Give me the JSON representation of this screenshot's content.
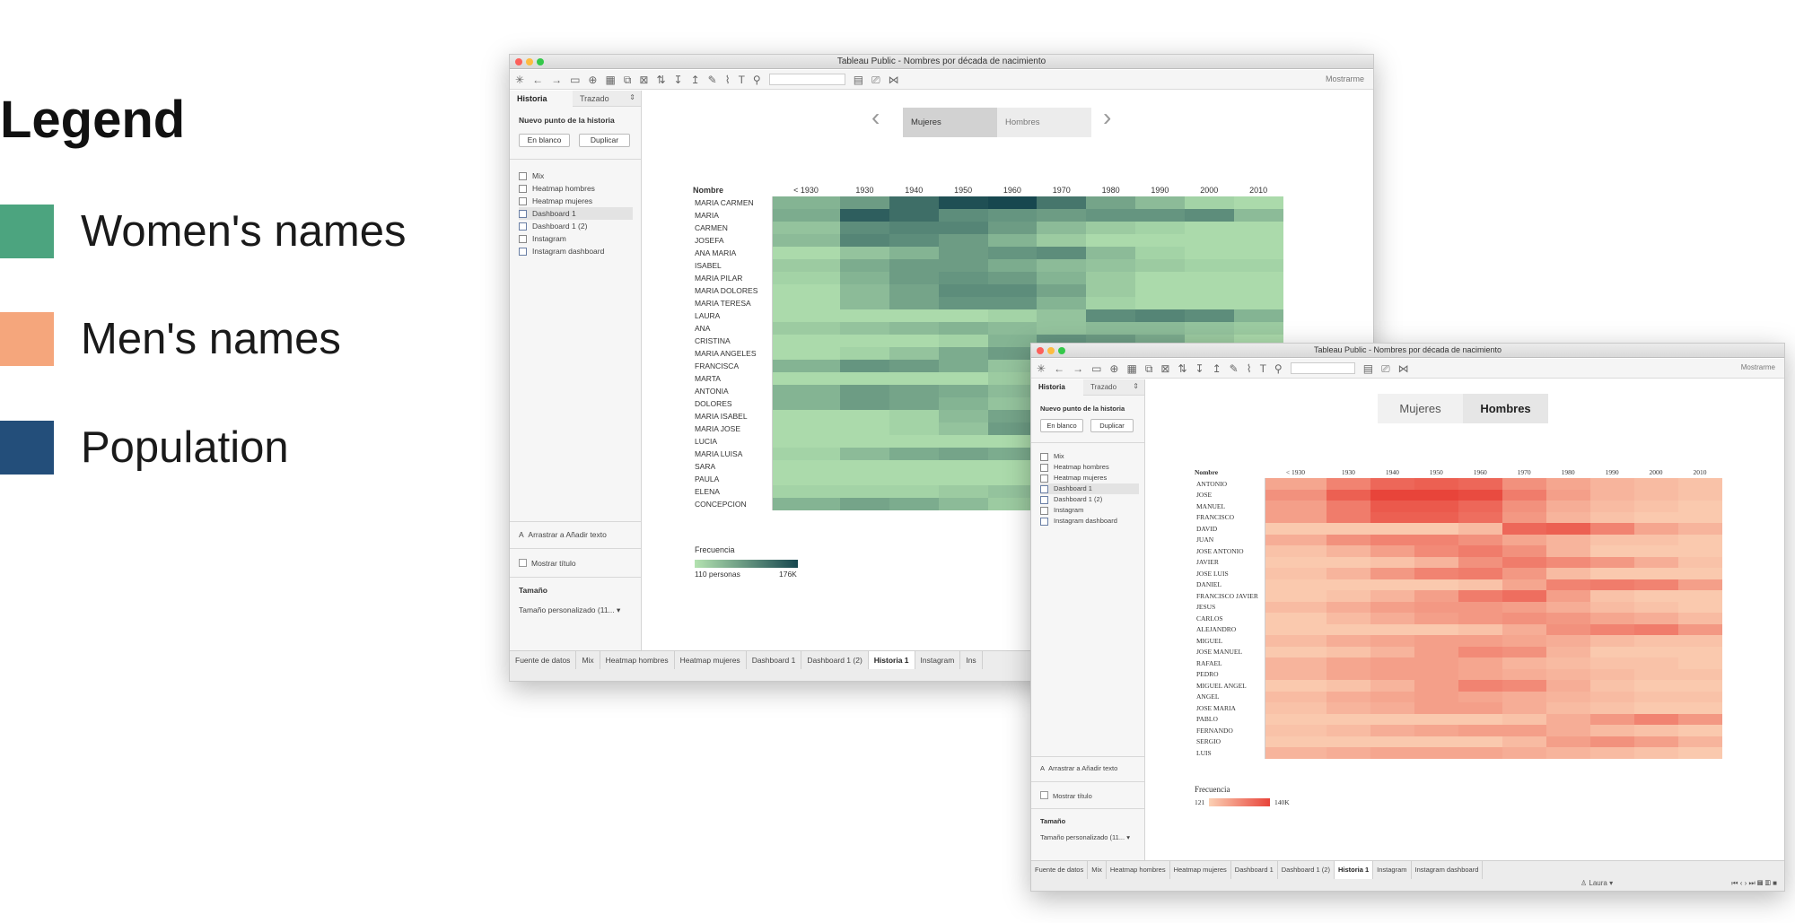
{
  "legend": {
    "title": "Legend",
    "items": [
      {
        "label": "Women's names",
        "color": "#4ca47f"
      },
      {
        "label": "Men's names",
        "color": "#f5a67c"
      },
      {
        "label": "Population",
        "color": "#234e7a"
      }
    ]
  },
  "window_women": {
    "title": "Tableau Public - Nombres por década de nacimiento",
    "show_me": "Mostrarme",
    "sidebar": {
      "tab_history": "Historia",
      "tab_layout": "Trazado",
      "new_point_heading": "Nuevo punto de la historia",
      "blank_button": "En blanco",
      "duplicate_button": "Duplicar",
      "sheets": [
        "Mix",
        "Heatmap hombres",
        "Heatmap mujeres",
        "Dashboard 1",
        "Dashboard 1 (2)",
        "Instagram",
        "Instagram dashboard"
      ],
      "drag_text": "Arrastrar a Añadir texto",
      "show_title": "Mostrar título",
      "size_heading": "Tamaño",
      "size_value": "Tamaño personalizado (11..."
    },
    "nav": {
      "women": "Mujeres",
      "men": "Hombres"
    },
    "heatmap": {
      "name_header": "Nombre",
      "decades": [
        "< 1930",
        "1930",
        "1940",
        "1950",
        "1960",
        "1970",
        "1980",
        "1990",
        "2000",
        "2010"
      ],
      "names": [
        "MARIA CARMEN",
        "MARIA",
        "CARMEN",
        "JOSEFA",
        "ANA MARIA",
        "ISABEL",
        "MARIA PILAR",
        "MARIA DOLORES",
        "MARIA TERESA",
        "LAURA",
        "ANA",
        "CRISTINA",
        "MARIA ANGELES",
        "FRANCISCA",
        "MARTA",
        "ANTONIA",
        "DOLORES",
        "MARIA ISABEL",
        "MARIA JOSE",
        "LUCIA",
        "MARIA LUISA",
        "SARA",
        "PAULA",
        "ELENA",
        "CONCEPCION"
      ],
      "intensity": [
        [
          0.3,
          0.45,
          0.75,
          0.95,
          1.0,
          0.7,
          0.4,
          0.25,
          0.1,
          0.05
        ],
        [
          0.35,
          0.85,
          0.75,
          0.55,
          0.5,
          0.45,
          0.5,
          0.5,
          0.55,
          0.25
        ],
        [
          0.2,
          0.55,
          0.6,
          0.6,
          0.45,
          0.25,
          0.15,
          0.1,
          0.05,
          0.05
        ],
        [
          0.25,
          0.6,
          0.55,
          0.45,
          0.3,
          0.15,
          0.05,
          0.05,
          0.05,
          0.05
        ],
        [
          0.05,
          0.2,
          0.3,
          0.45,
          0.5,
          0.55,
          0.25,
          0.1,
          0.05,
          0.05
        ],
        [
          0.15,
          0.35,
          0.45,
          0.45,
          0.35,
          0.25,
          0.2,
          0.15,
          0.1,
          0.1
        ],
        [
          0.1,
          0.3,
          0.45,
          0.5,
          0.45,
          0.3,
          0.15,
          0.05,
          0.05,
          0.05
        ],
        [
          0.05,
          0.25,
          0.4,
          0.55,
          0.55,
          0.4,
          0.15,
          0.05,
          0.05,
          0.05
        ],
        [
          0.05,
          0.25,
          0.4,
          0.5,
          0.5,
          0.3,
          0.1,
          0.05,
          0.05,
          0.05
        ],
        [
          0.05,
          0.05,
          0.05,
          0.05,
          0.1,
          0.2,
          0.55,
          0.6,
          0.55,
          0.3
        ],
        [
          0.15,
          0.2,
          0.25,
          0.3,
          0.25,
          0.2,
          0.25,
          0.25,
          0.2,
          0.15
        ],
        [
          0.05,
          0.05,
          0.05,
          0.1,
          0.3,
          0.5,
          0.45,
          0.35,
          0.15,
          0.05
        ],
        [
          0.05,
          0.1,
          0.2,
          0.35,
          0.45,
          0.35,
          0.1,
          0.05,
          0.05,
          0.05
        ],
        [
          0.3,
          0.5,
          0.45,
          0.35,
          0.2,
          0.1,
          0.05,
          0.05,
          0.05,
          0.05
        ],
        [
          0.05,
          0.05,
          0.05,
          0.05,
          0.15,
          0.35,
          0.5,
          0.45,
          0.3,
          0.1
        ],
        [
          0.3,
          0.45,
          0.4,
          0.35,
          0.25,
          0.1,
          0.05,
          0.05,
          0.05,
          0.05
        ],
        [
          0.3,
          0.45,
          0.4,
          0.3,
          0.2,
          0.1,
          0.05,
          0.05,
          0.05,
          0.05
        ],
        [
          0.05,
          0.05,
          0.1,
          0.25,
          0.4,
          0.45,
          0.2,
          0.05,
          0.05,
          0.05
        ],
        [
          0.05,
          0.05,
          0.1,
          0.2,
          0.45,
          0.55,
          0.35,
          0.1,
          0.05,
          0.05
        ],
        [
          0.05,
          0.05,
          0.05,
          0.05,
          0.05,
          0.05,
          0.1,
          0.25,
          0.45,
          0.5
        ],
        [
          0.1,
          0.25,
          0.35,
          0.4,
          0.35,
          0.2,
          0.05,
          0.05,
          0.05,
          0.05
        ],
        [
          0.05,
          0.05,
          0.05,
          0.05,
          0.05,
          0.1,
          0.25,
          0.45,
          0.4,
          0.25
        ],
        [
          0.05,
          0.05,
          0.05,
          0.05,
          0.05,
          0.05,
          0.15,
          0.35,
          0.5,
          0.45
        ],
        [
          0.1,
          0.1,
          0.1,
          0.15,
          0.2,
          0.25,
          0.25,
          0.25,
          0.2,
          0.15
        ],
        [
          0.3,
          0.4,
          0.35,
          0.25,
          0.15,
          0.05,
          0.05,
          0.05,
          0.05,
          0.05
        ]
      ],
      "color_low": "#b3e2b0",
      "color_high": "#17474f"
    },
    "frequency": {
      "title": "Frecuencia",
      "min_label": "110 personas",
      "max_label": "176K"
    },
    "bottom_tabs": [
      "Fuente de datos",
      "Mix",
      "Heatmap hombres",
      "Heatmap mujeres",
      "Dashboard 1",
      "Dashboard 1 (2)",
      "Historia 1",
      "Instagram",
      "Ins"
    ]
  },
  "window_men": {
    "title": "Tableau Public - Nombres por década de nacimiento",
    "show_me": "Mostrarme",
    "sidebar": {
      "tab_history": "Historia",
      "tab_layout": "Trazado",
      "new_point_heading": "Nuevo punto de la historia",
      "blank_button": "En blanco",
      "duplicate_button": "Duplicar",
      "sheets": [
        "Mix",
        "Heatmap hombres",
        "Heatmap mujeres",
        "Dashboard 1",
        "Dashboard 1 (2)",
        "Instagram",
        "Instagram dashboard"
      ],
      "drag_text": "Arrastrar a Añadir texto",
      "show_title": "Mostrar título",
      "size_heading": "Tamaño",
      "size_value": "Tamaño personalizado (11..."
    },
    "nav": {
      "women": "Mujeres",
      "men": "Hombres"
    },
    "heatmap": {
      "name_header": "Nombre",
      "decades": [
        "< 1930",
        "1930",
        "1940",
        "1950",
        "1960",
        "1970",
        "1980",
        "1990",
        "2000",
        "2010"
      ],
      "names": [
        "ANTONIO",
        "JOSE",
        "MANUEL",
        "FRANCISCO",
        "DAVID",
        "JUAN",
        "JOSE ANTONIO",
        "JAVIER",
        "JOSE LUIS",
        "DANIEL",
        "FRANCISCO JAVIER",
        "JESUS",
        "CARLOS",
        "ALEJANDRO",
        "MIGUEL",
        "JOSE MANUEL",
        "RAFAEL",
        "PEDRO",
        "MIGUEL ANGEL",
        "ANGEL",
        "JOSE MARIA",
        "PABLO",
        "FERNANDO",
        "SERGIO",
        "LUIS"
      ],
      "intensity": [
        [
          0.3,
          0.55,
          0.75,
          0.8,
          0.75,
          0.45,
          0.3,
          0.2,
          0.15,
          0.1
        ],
        [
          0.45,
          0.8,
          1.0,
          1.0,
          0.95,
          0.6,
          0.35,
          0.2,
          0.15,
          0.1
        ],
        [
          0.35,
          0.6,
          0.85,
          0.85,
          0.75,
          0.45,
          0.25,
          0.15,
          0.1,
          0.05
        ],
        [
          0.35,
          0.6,
          0.8,
          0.8,
          0.7,
          0.4,
          0.2,
          0.1,
          0.05,
          0.05
        ],
        [
          0.05,
          0.05,
          0.05,
          0.05,
          0.15,
          0.75,
          0.8,
          0.55,
          0.3,
          0.2
        ],
        [
          0.25,
          0.45,
          0.55,
          0.55,
          0.45,
          0.3,
          0.2,
          0.1,
          0.1,
          0.05
        ],
        [
          0.1,
          0.2,
          0.35,
          0.5,
          0.6,
          0.45,
          0.2,
          0.05,
          0.05,
          0.05
        ],
        [
          0.05,
          0.05,
          0.1,
          0.2,
          0.45,
          0.6,
          0.5,
          0.4,
          0.25,
          0.1
        ],
        [
          0.1,
          0.2,
          0.4,
          0.55,
          0.6,
          0.4,
          0.15,
          0.05,
          0.05,
          0.05
        ],
        [
          0.05,
          0.05,
          0.05,
          0.05,
          0.1,
          0.3,
          0.55,
          0.6,
          0.55,
          0.35
        ],
        [
          0.05,
          0.1,
          0.2,
          0.35,
          0.6,
          0.7,
          0.35,
          0.1,
          0.05,
          0.05
        ],
        [
          0.15,
          0.25,
          0.35,
          0.4,
          0.4,
          0.35,
          0.25,
          0.15,
          0.1,
          0.05
        ],
        [
          0.05,
          0.15,
          0.25,
          0.35,
          0.4,
          0.45,
          0.4,
          0.3,
          0.25,
          0.15
        ],
        [
          0.05,
          0.05,
          0.05,
          0.05,
          0.1,
          0.25,
          0.45,
          0.55,
          0.6,
          0.4
        ],
        [
          0.15,
          0.25,
          0.3,
          0.35,
          0.35,
          0.3,
          0.25,
          0.15,
          0.1,
          0.1
        ],
        [
          0.05,
          0.1,
          0.2,
          0.35,
          0.5,
          0.45,
          0.2,
          0.05,
          0.05,
          0.05
        ],
        [
          0.2,
          0.3,
          0.35,
          0.35,
          0.3,
          0.2,
          0.15,
          0.1,
          0.1,
          0.05
        ],
        [
          0.2,
          0.3,
          0.35,
          0.35,
          0.3,
          0.25,
          0.2,
          0.15,
          0.1,
          0.1
        ],
        [
          0.05,
          0.1,
          0.2,
          0.35,
          0.55,
          0.5,
          0.25,
          0.1,
          0.05,
          0.05
        ],
        [
          0.15,
          0.25,
          0.3,
          0.35,
          0.3,
          0.25,
          0.2,
          0.15,
          0.1,
          0.1
        ],
        [
          0.1,
          0.2,
          0.25,
          0.35,
          0.35,
          0.25,
          0.15,
          0.1,
          0.05,
          0.05
        ],
        [
          0.05,
          0.05,
          0.05,
          0.05,
          0.05,
          0.1,
          0.25,
          0.4,
          0.55,
          0.4
        ],
        [
          0.1,
          0.15,
          0.25,
          0.3,
          0.35,
          0.35,
          0.25,
          0.15,
          0.1,
          0.05
        ],
        [
          0.05,
          0.05,
          0.05,
          0.05,
          0.05,
          0.15,
          0.35,
          0.45,
          0.35,
          0.2
        ],
        [
          0.2,
          0.25,
          0.3,
          0.3,
          0.3,
          0.25,
          0.2,
          0.15,
          0.1,
          0.05
        ]
      ],
      "color_low": "#fbd0b4",
      "color_high": "#e8443a"
    },
    "frequency": {
      "title": "Frecuencia",
      "min_label": "121",
      "max_label": "140K"
    },
    "bottom_tabs": [
      "Fuente de datos",
      "Mix",
      "Heatmap hombres",
      "Heatmap mujeres",
      "Dashboard 1",
      "Dashboard 1 (2)",
      "Historia 1",
      "Instagram",
      "Instagram dashboard"
    ],
    "status_user": "Laura"
  }
}
